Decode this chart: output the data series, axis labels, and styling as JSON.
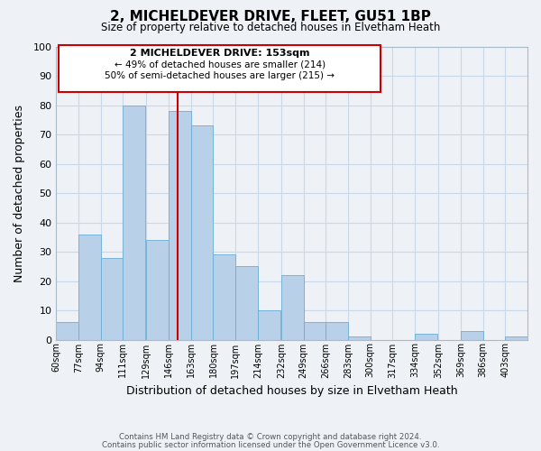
{
  "title": "2, MICHELDEVER DRIVE, FLEET, GU51 1BP",
  "subtitle": "Size of property relative to detached houses in Elvetham Heath",
  "xlabel": "Distribution of detached houses by size in Elvetham Heath",
  "ylabel": "Number of detached properties",
  "bin_labels": [
    "60sqm",
    "77sqm",
    "94sqm",
    "111sqm",
    "129sqm",
    "146sqm",
    "163sqm",
    "180sqm",
    "197sqm",
    "214sqm",
    "232sqm",
    "249sqm",
    "266sqm",
    "283sqm",
    "300sqm",
    "317sqm",
    "334sqm",
    "352sqm",
    "369sqm",
    "386sqm",
    "403sqm"
  ],
  "bin_edges": [
    60,
    77,
    94,
    111,
    129,
    146,
    163,
    180,
    197,
    214,
    232,
    249,
    266,
    283,
    300,
    317,
    334,
    352,
    369,
    386,
    403
  ],
  "bar_heights": [
    6,
    36,
    28,
    80,
    34,
    78,
    73,
    29,
    25,
    10,
    22,
    6,
    6,
    1,
    0,
    0,
    2,
    0,
    3,
    0,
    1
  ],
  "bar_color": "#b8d0e8",
  "bar_edge_color": "#6aaed6",
  "grid_color": "#c8d8e8",
  "vline_x": 153,
  "vline_color": "#cc0000",
  "annotation_title": "2 MICHELDEVER DRIVE: 153sqm",
  "annotation_line1": "← 49% of detached houses are smaller (214)",
  "annotation_line2": "50% of semi-detached houses are larger (215) →",
  "annotation_box_color": "#cc0000",
  "ylim": [
    0,
    100
  ],
  "xlim_left": 60,
  "xlim_right": 420,
  "footer_line1": "Contains HM Land Registry data © Crown copyright and database right 2024.",
  "footer_line2": "Contains public sector information licensed under the Open Government Licence v3.0.",
  "bg_color": "#eef2f7"
}
